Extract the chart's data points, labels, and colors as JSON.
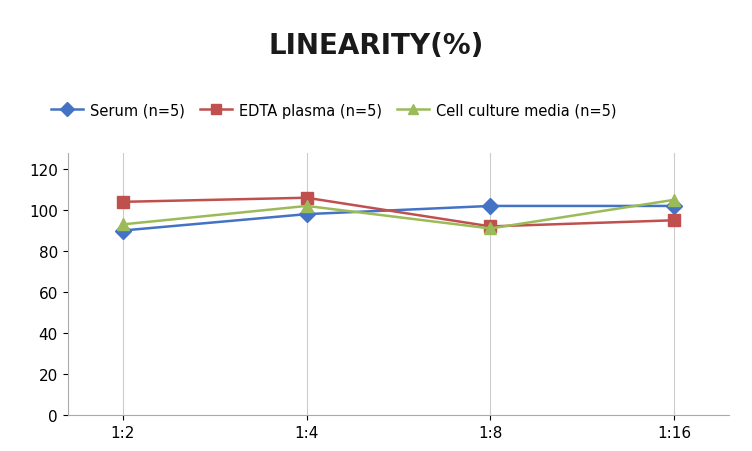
{
  "title": "LINEARITY(%)",
  "x_labels": [
    "1:2",
    "1:4",
    "1:8",
    "1:16"
  ],
  "series": [
    {
      "label": "Serum (n=5)",
      "values": [
        90,
        98,
        102,
        102
      ],
      "color": "#4472C4",
      "marker": "D"
    },
    {
      "label": "EDTA plasma (n=5)",
      "values": [
        104,
        106,
        92,
        95
      ],
      "color": "#C0504D",
      "marker": "s"
    },
    {
      "label": "Cell culture media (n=5)",
      "values": [
        93,
        102,
        91,
        105
      ],
      "color": "#9BBB59",
      "marker": "^"
    }
  ],
  "ylim": [
    0,
    128
  ],
  "yticks": [
    0,
    20,
    40,
    60,
    80,
    100,
    120
  ],
  "title_fontsize": 20,
  "legend_fontsize": 10.5,
  "tick_fontsize": 11,
  "background_color": "#ffffff",
  "grid_color": "#cccccc",
  "line_width": 1.8,
  "marker_size": 8
}
